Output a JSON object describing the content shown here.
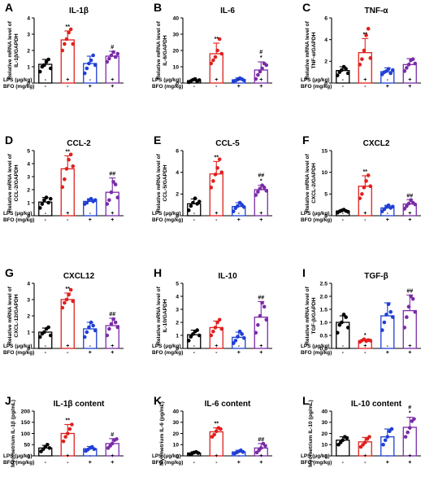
{
  "figure": {
    "colors": {
      "control": "#000000",
      "lps": "#e0201e",
      "bfo": "#1f3fd6",
      "lps_bfo": "#7a2ba8",
      "dot_bfo_a": "#1a33b8"
    },
    "row_conditions": [
      "LPS (μg/kg)",
      "BFO (mg/kg)"
    ],
    "condition_signs": {
      "lps": [
        "-",
        "+",
        "-",
        "+"
      ],
      "bfo": [
        "-",
        "-",
        "+",
        "+"
      ]
    }
  },
  "chart_data": [
    {
      "panel": "A",
      "type": "bar",
      "title": "IL-1β",
      "ylabel": "Relative mRNA level of IL-1β/GAPDH",
      "ylim": [
        0,
        4
      ],
      "yticks": [
        "0",
        "1",
        "2",
        "3",
        "4"
      ],
      "conditions": [
        "LPS (μg/kg)",
        "BFO (mg/kg)"
      ],
      "values": [
        1.15,
        2.65,
        1.2,
        1.65
      ],
      "errors": [
        0.3,
        0.55,
        0.45,
        0.3
      ],
      "points": [
        [
          0.7,
          1.0,
          1.1,
          1.3,
          1.45,
          0.9
        ],
        [
          2.0,
          2.4,
          2.7,
          3.1,
          3.3,
          2.4
        ],
        [
          0.6,
          0.9,
          1.2,
          1.4,
          1.7,
          1.1
        ],
        [
          1.3,
          1.5,
          1.7,
          1.9,
          1.6,
          1.8
        ]
      ],
      "sig": [
        "",
        "**",
        "",
        "#"
      ]
    },
    {
      "panel": "B",
      "type": "bar",
      "title": "IL-6",
      "ylabel": "Relative mRNA level of IL-6/GAPDH",
      "ylim": [
        0,
        40
      ],
      "yticks": [
        "0",
        "10",
        "20",
        "30",
        "40"
      ],
      "conditions": [
        "LPS (μg/kg)",
        "BFO (mg/kg)"
      ],
      "values": [
        1.5,
        18,
        2,
        8
      ],
      "errors": [
        0.8,
        6.5,
        1.2,
        5
      ],
      "points": [
        [
          0.5,
          1.2,
          2.0,
          2.5,
          1.0,
          1.8
        ],
        [
          12,
          14,
          16,
          20,
          27,
          18
        ],
        [
          0.8,
          1.5,
          2.2,
          3.0,
          2.4,
          1.6
        ],
        [
          2.5,
          5,
          7,
          9,
          12,
          11
        ]
      ],
      "sig": [
        "",
        "**",
        "",
        "#\n*"
      ]
    },
    {
      "panel": "C",
      "type": "bar",
      "title": "TNF-α",
      "ylabel": "Relative mRNA level of TNF-α/GAPDH",
      "ylim": [
        0,
        6
      ],
      "yticks": [
        "0",
        "2",
        "4",
        "6"
      ],
      "conditions": [
        "LPS (μg/kg)",
        "BFO (mg/kg)"
      ],
      "values": [
        1.15,
        2.8,
        1.05,
        1.7
      ],
      "errors": [
        0.35,
        1.3,
        0.35,
        0.55
      ],
      "points": [
        [
          0.7,
          1.0,
          1.2,
          1.5,
          1.3,
          0.9
        ],
        [
          1.7,
          2.2,
          3.0,
          4.4,
          5.0,
          2.3
        ],
        [
          0.8,
          1.0,
          1.1,
          1.3,
          0.9,
          1.2
        ],
        [
          1.1,
          1.4,
          1.7,
          2.1,
          2.2,
          1.8
        ]
      ],
      "sig": [
        "",
        "**",
        "",
        ""
      ]
    },
    {
      "panel": "D",
      "type": "bar",
      "title": "CCL-2",
      "ylabel": "Relative mRNA level of CCL-2/GAPDH",
      "ylim": [
        0,
        5
      ],
      "yticks": [
        "0",
        "1",
        "2",
        "3",
        "4",
        "5"
      ],
      "conditions": [
        "LPS (μg/kg)",
        "BFO (mg/kg)"
      ],
      "values": [
        1.05,
        3.6,
        1.1,
        1.8
      ],
      "errors": [
        0.35,
        1.0,
        0.2,
        1.1
      ],
      "points": [
        [
          0.6,
          0.9,
          1.2,
          1.4,
          1.0,
          1.3
        ],
        [
          2.2,
          2.8,
          3.6,
          4.3,
          4.7,
          3.8
        ],
        [
          0.9,
          1.0,
          1.2,
          1.3,
          1.1,
          1.2
        ],
        [
          0.9,
          1.2,
          1.8,
          2.6,
          2.4,
          1.4
        ]
      ],
      "sig": [
        "",
        "**",
        "",
        "##"
      ]
    },
    {
      "panel": "E",
      "type": "bar",
      "title": "CCL-5",
      "ylabel": "Relative mRNA level of CCL-5/GAPDH",
      "ylim": [
        0,
        6
      ],
      "yticks": [
        "0",
        "2",
        "4",
        "6"
      ],
      "conditions": [
        "LPS (μg/kg)",
        "BFO (mg/kg)"
      ],
      "values": [
        1.1,
        3.85,
        0.85,
        2.4
      ],
      "errors": [
        0.45,
        1.15,
        0.35,
        0.4
      ],
      "points": [
        [
          0.5,
          0.9,
          1.2,
          1.6,
          1.1,
          1.3
        ],
        [
          2.6,
          3.2,
          3.8,
          4.4,
          5.2,
          4.0
        ],
        [
          0.4,
          0.7,
          0.9,
          1.2,
          1.0,
          0.8
        ],
        [
          1.9,
          2.2,
          2.5,
          2.8,
          2.6,
          2.3
        ]
      ],
      "sig": [
        "",
        "**",
        "",
        "##\n*"
      ]
    },
    {
      "panel": "F",
      "type": "bar",
      "title": "CXCL2",
      "ylabel": "Relative mRNA level of CXCL-2/GAPDH",
      "ylim": [
        0,
        15
      ],
      "yticks": [
        "0",
        "5",
        "10",
        "15"
      ],
      "conditions": [
        "LPS (μg/kg)",
        "BFO (mg/kg)"
      ],
      "values": [
        1.1,
        6.8,
        1.8,
        2.7
      ],
      "errors": [
        0.3,
        2.4,
        0.6,
        1.0
      ],
      "points": [
        [
          0.7,
          1.0,
          1.2,
          1.4,
          1.1,
          0.9
        ],
        [
          4.0,
          5.0,
          6.5,
          8.0,
          9.3,
          6.8
        ],
        [
          1.0,
          1.5,
          2.0,
          2.4,
          1.8,
          2.1
        ],
        [
          1.6,
          2.2,
          2.8,
          3.6,
          3.0,
          2.6
        ]
      ],
      "sig": [
        "",
        "**",
        "",
        "##"
      ]
    },
    {
      "panel": "G",
      "type": "bar",
      "title": "CXCL12",
      "ylabel": "Relative mRNA level of CXCL-12/GAPDH",
      "ylim": [
        0,
        4
      ],
      "yticks": [
        "0",
        "1",
        "2",
        "3",
        "4"
      ],
      "conditions": [
        "LPS (μg/kg)",
        "BFO (mg/kg)"
      ],
      "values": [
        1.0,
        3.0,
        1.2,
        1.4
      ],
      "errors": [
        0.25,
        0.4,
        0.4,
        0.45
      ],
      "points": [
        [
          0.7,
          0.9,
          1.0,
          1.2,
          1.3,
          0.8
        ],
        [
          2.5,
          2.8,
          3.0,
          3.3,
          3.6,
          2.9
        ],
        [
          0.7,
          1.0,
          1.3,
          1.6,
          1.4,
          1.1
        ],
        [
          0.8,
          1.2,
          1.5,
          1.8,
          1.6,
          1.3
        ]
      ],
      "sig": [
        "",
        "**",
        "",
        "##"
      ]
    },
    {
      "panel": "H",
      "type": "bar",
      "title": "IL-10",
      "ylabel": "Relative mRNA level of IL-10/GAPDH",
      "ylim": [
        0,
        5
      ],
      "yticks": [
        "0",
        "1",
        "2",
        "3",
        "4",
        "5"
      ],
      "conditions": [
        "LPS (μg/kg)",
        "BFO (mg/kg)"
      ],
      "values": [
        1.05,
        1.6,
        0.85,
        2.4
      ],
      "errors": [
        0.35,
        0.5,
        0.4,
        1.2
      ],
      "points": [
        [
          0.6,
          0.9,
          1.1,
          1.3,
          1.4,
          1.0
        ],
        [
          1.0,
          1.3,
          1.6,
          2.0,
          2.2,
          1.5
        ],
        [
          0.4,
          0.6,
          0.9,
          1.3,
          1.1,
          0.8
        ],
        [
          1.2,
          1.8,
          2.5,
          3.5,
          3.2,
          2.2
        ]
      ],
      "sig": [
        "",
        "",
        "",
        "##"
      ]
    },
    {
      "panel": "I",
      "type": "bar",
      "title": "TGF-β",
      "ylabel": "Relative mRNA level of TGF-β/GAPDH",
      "ylim": [
        0,
        2.5
      ],
      "yticks": [
        "0.0",
        "0.5",
        "1.0",
        "1.5",
        "2.0",
        "2.5"
      ],
      "conditions": [
        "LPS (μg/kg)",
        "BFO (mg/kg)"
      ],
      "values": [
        1.0,
        0.3,
        1.25,
        1.45
      ],
      "errors": [
        0.25,
        0.05,
        0.5,
        0.6
      ],
      "points": [
        [
          0.6,
          0.9,
          1.0,
          1.3,
          1.2,
          0.8
        ],
        [
          0.25,
          0.3,
          0.35,
          0.28,
          0.32,
          0.3
        ],
        [
          0.7,
          1.0,
          1.3,
          1.7,
          1.4,
          1.2
        ],
        [
          0.8,
          1.2,
          1.6,
          2.0,
          1.9,
          1.4
        ]
      ],
      "sig": [
        "",
        "*",
        "",
        "##"
      ]
    },
    {
      "panel": "J",
      "type": "bar",
      "title": "IL-1β content",
      "ylabel": "Myometrium IL-1β (pg/mL)",
      "ylim": [
        0,
        200
      ],
      "yticks": [
        "0",
        "50",
        "100",
        "150",
        "200"
      ],
      "conditions": [
        "LPS (μg/kg)",
        "BFO (mg/kg)"
      ],
      "values": [
        35,
        100,
        32,
        55
      ],
      "errors": [
        12,
        40,
        10,
        22
      ],
      "points": [
        [
          20,
          30,
          40,
          50,
          35
        ],
        [
          65,
          85,
          100,
          120,
          140
        ],
        [
          22,
          28,
          35,
          40,
          30
        ],
        [
          35,
          45,
          55,
          70,
          75
        ]
      ],
      "sig": [
        "",
        "**",
        "",
        "#"
      ]
    },
    {
      "panel": "K",
      "type": "bar",
      "title": "IL-6 content",
      "ylabel": "Myometrium IL-6 (pg/mL)",
      "ylim": [
        0,
        40
      ],
      "yticks": [
        "0",
        "10",
        "20",
        "30",
        "40"
      ],
      "conditions": [
        "LPS (μg/kg)",
        "BFO (mg/kg)"
      ],
      "values": [
        2.5,
        21.5,
        3.5,
        7
      ],
      "errors": [
        1.2,
        3.5,
        1.5,
        4
      ],
      "points": [
        [
          1.5,
          2.0,
          3.0,
          3.5,
          2.5
        ],
        [
          17,
          19,
          22,
          25,
          24
        ],
        [
          2.0,
          3.0,
          4.0,
          5.0,
          3.5
        ],
        [
          3.0,
          5.0,
          7.0,
          11,
          9
        ]
      ],
      "sig": [
        "",
        "**",
        "",
        "##"
      ]
    },
    {
      "panel": "L",
      "type": "bar",
      "title": "IL-10 content",
      "ylabel": "Myometrium IL-10 (pg/mL)",
      "ylim": [
        0,
        40
      ],
      "yticks": [
        "0",
        "10",
        "20",
        "30",
        "40"
      ],
      "conditions": [
        "LPS (μg/kg)",
        "BFO (mg/kg)"
      ],
      "values": [
        14,
        12.5,
        17,
        25.5
      ],
      "errors": [
        3,
        4,
        7,
        9
      ],
      "points": [
        [
          10,
          12,
          14,
          17,
          16
        ],
        [
          8,
          10,
          12,
          15,
          17
        ],
        [
          10,
          14,
          17,
          22,
          24
        ],
        [
          17,
          21,
          25,
          31,
          33
        ]
      ],
      "sig": [
        "",
        "",
        "",
        "#\n*"
      ]
    }
  ]
}
